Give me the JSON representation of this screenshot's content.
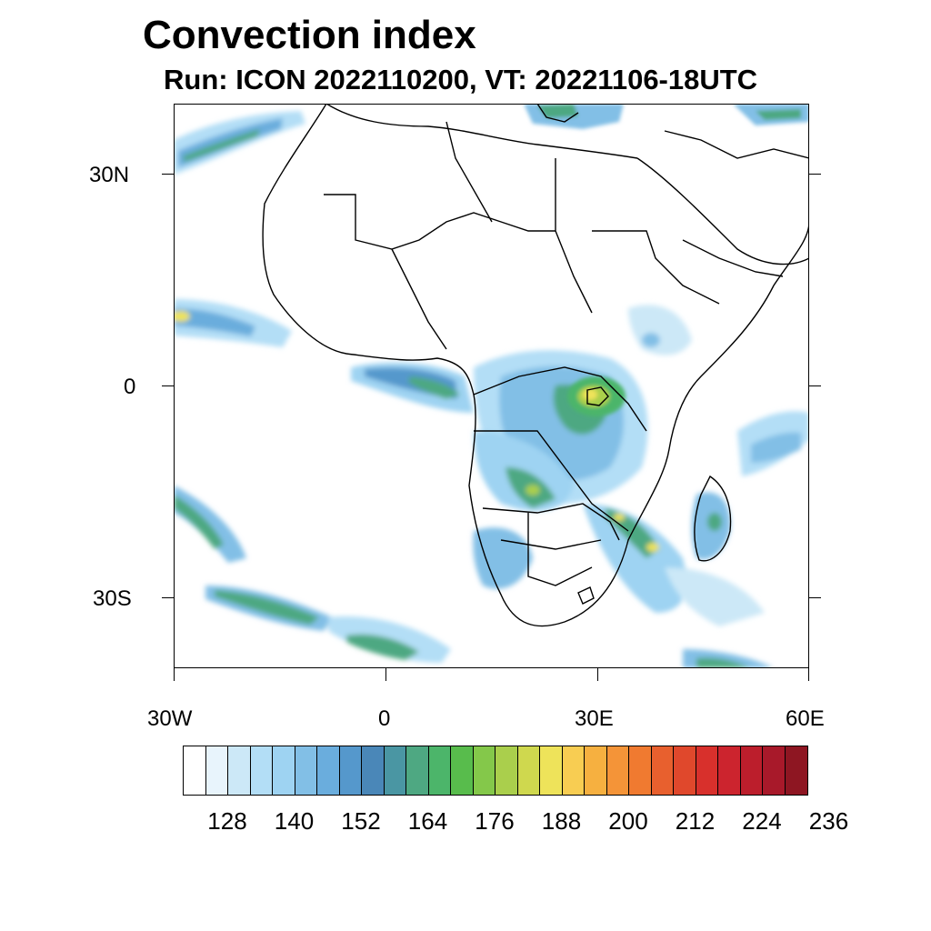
{
  "title": "Convection index",
  "subtitle": "Run: ICON 2022110200,  VT: 20221106-18UTC",
  "map": {
    "projection": "lat-lon",
    "lon_range": [
      -30,
      60
    ],
    "lat_range": [
      -40,
      40
    ],
    "y_axis_labels": [
      "30N",
      "0",
      "30S"
    ],
    "x_axis_labels": [
      "30W",
      "0",
      "30E",
      "60E"
    ],
    "ocean_color": "#ffffff",
    "border_color": "#000000",
    "regions": [
      {
        "name": "north-atlantic-band",
        "intensity": "medium"
      },
      {
        "name": "west-africa-coast",
        "intensity": "medium"
      },
      {
        "name": "gulf-of-guinea",
        "intensity": "medium"
      },
      {
        "name": "congo-basin",
        "intensity": "high"
      },
      {
        "name": "lake-victoria",
        "intensity": "very-high"
      },
      {
        "name": "angola-zambia",
        "intensity": "medium"
      },
      {
        "name": "mozambique-channel",
        "intensity": "high"
      },
      {
        "name": "madagascar",
        "intensity": "medium"
      },
      {
        "name": "south-atlantic-band",
        "intensity": "medium"
      },
      {
        "name": "south-indian-ocean",
        "intensity": "low"
      },
      {
        "name": "mediterranean-greece",
        "intensity": "medium"
      }
    ]
  },
  "colorbar": {
    "labels": [
      "128",
      "140",
      "152",
      "164",
      "176",
      "188",
      "200",
      "212",
      "224",
      "236"
    ],
    "colors": [
      "#ffffff",
      "#e8f4fc",
      "#cce8f7",
      "#b3def6",
      "#9ed3f2",
      "#82bfe6",
      "#6aaddd",
      "#5598cc",
      "#4a87b8",
      "#4a96a3",
      "#4ea882",
      "#4cb56a",
      "#58bc4c",
      "#84c84a",
      "#aacf4c",
      "#cfd84e",
      "#eee35a",
      "#f8cd52",
      "#f6b040",
      "#f49438",
      "#f07a30",
      "#e8602e",
      "#e0482c",
      "#d8302c",
      "#cc242e",
      "#bc1e2c",
      "#a8192a",
      "#8e1622"
    ]
  }
}
